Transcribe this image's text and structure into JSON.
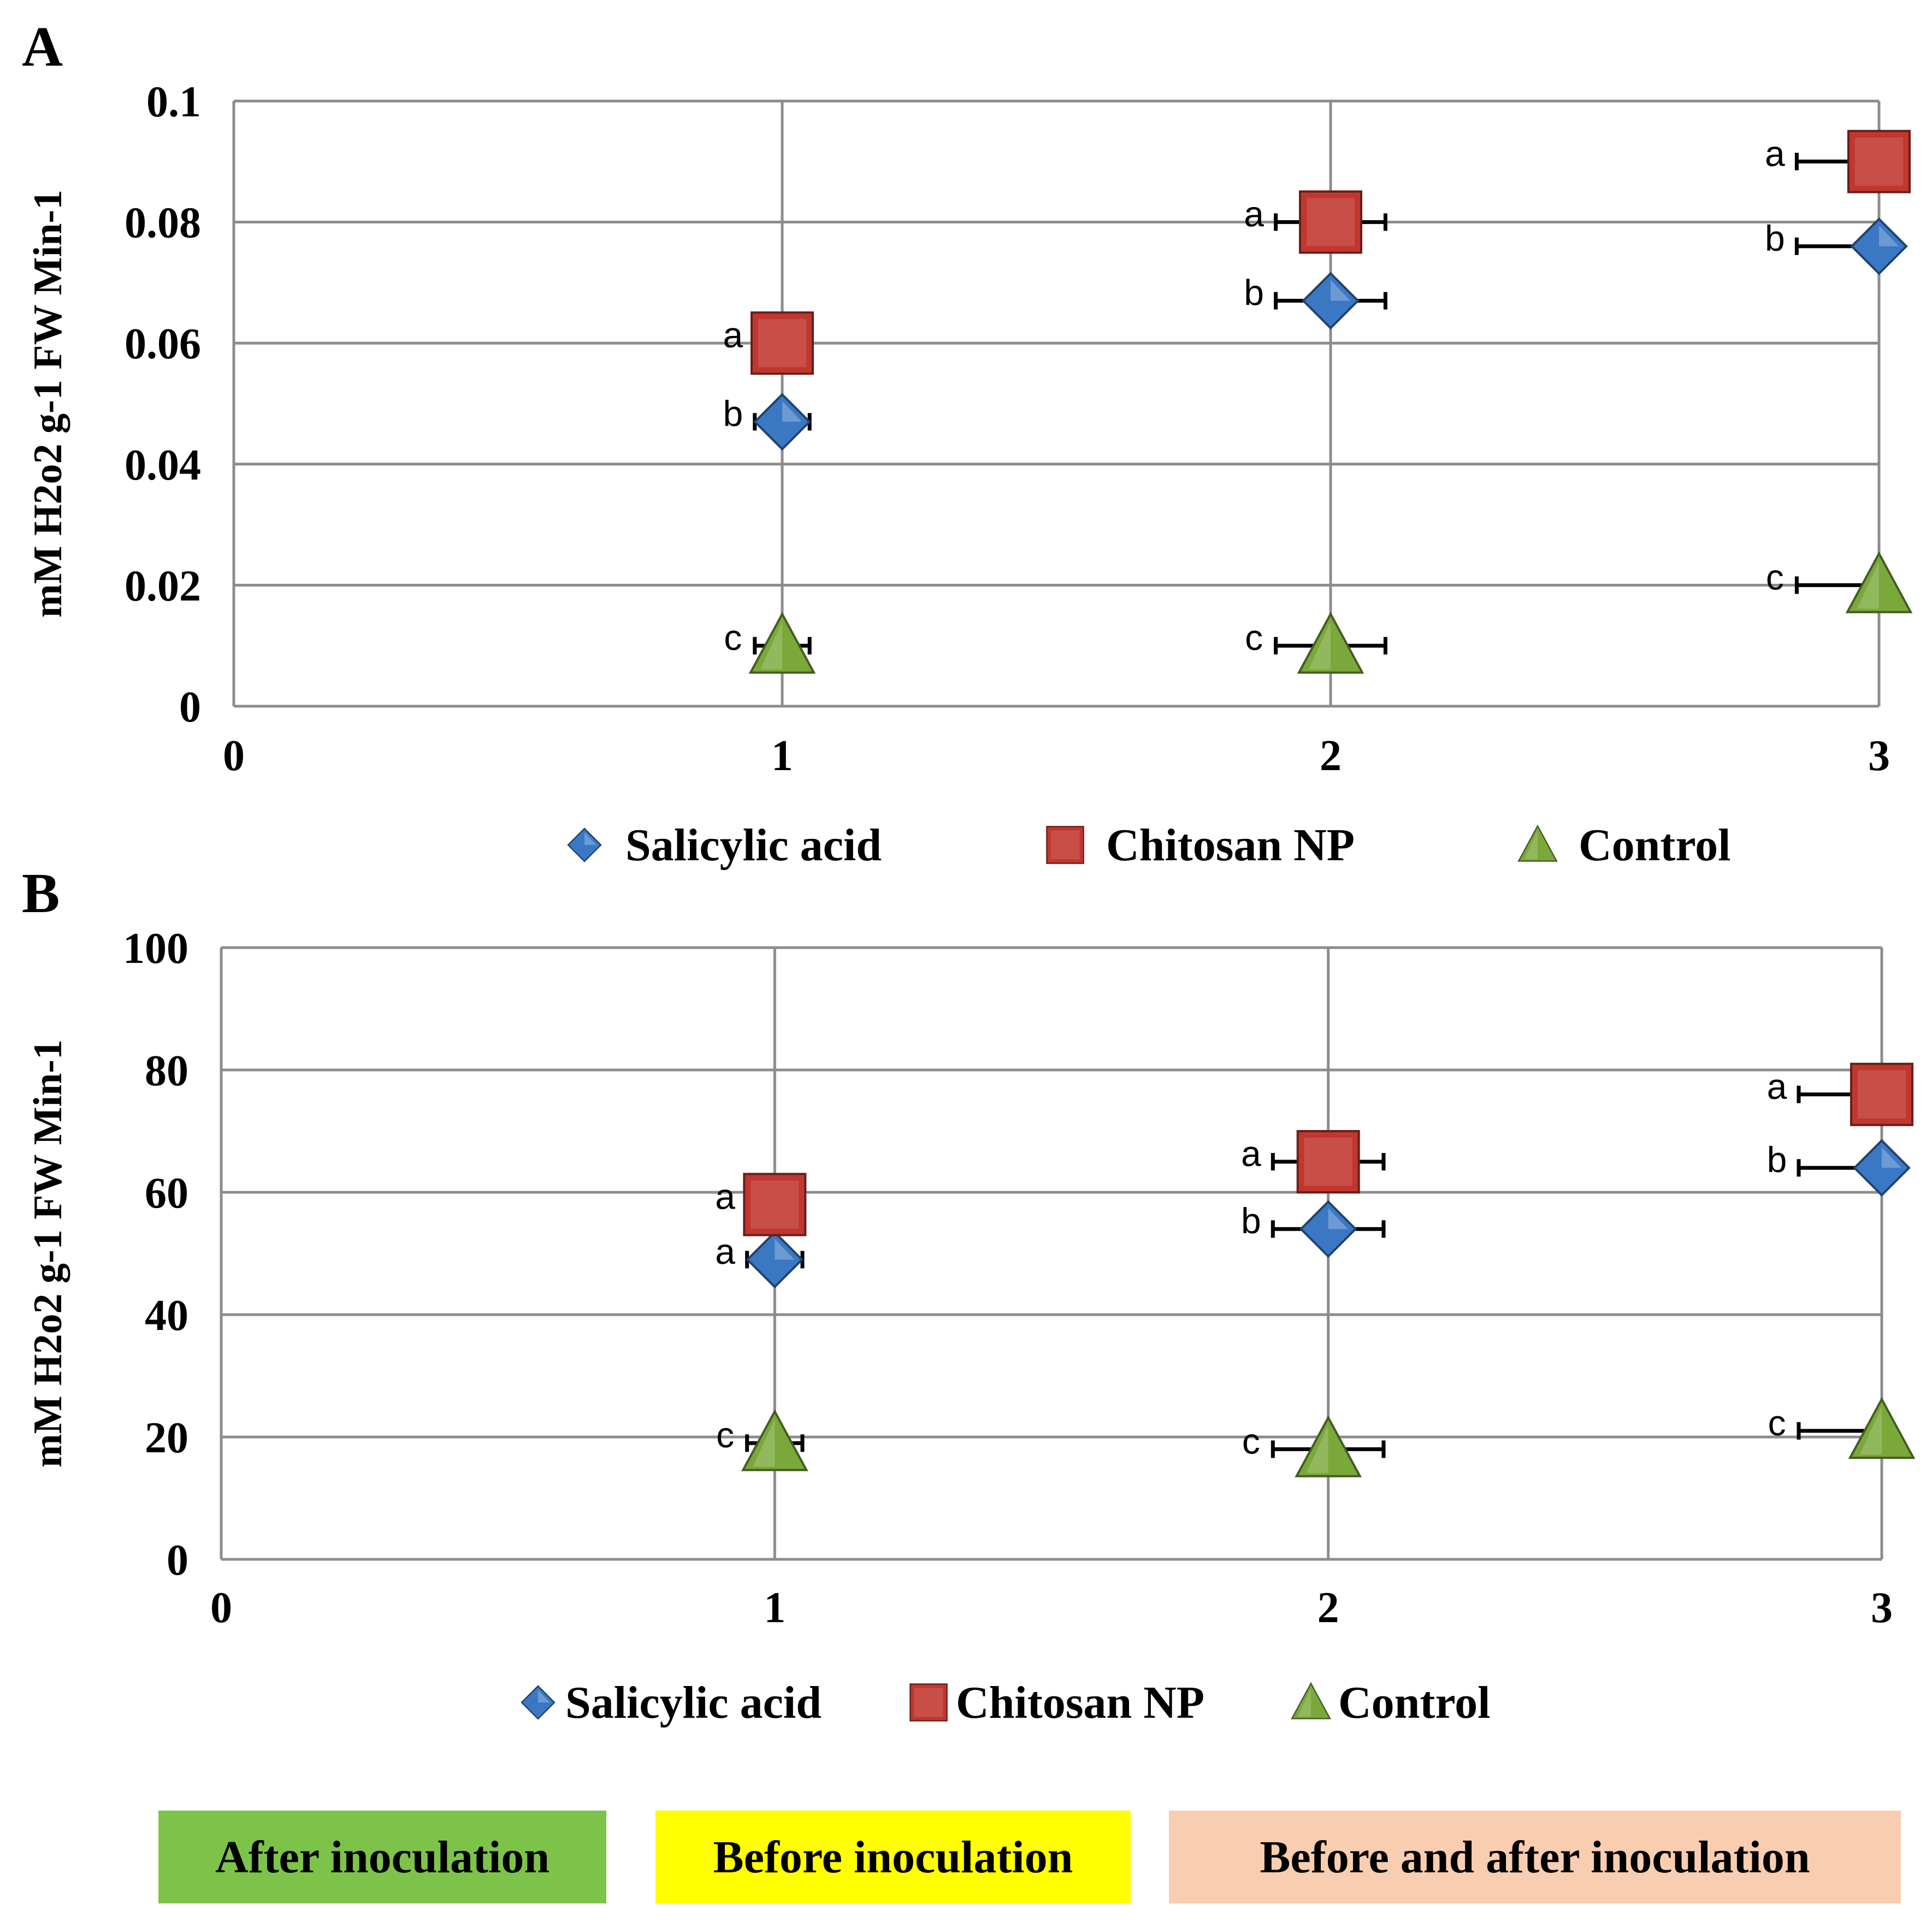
{
  "chart_data": [
    {
      "type": "scatter",
      "panel": "A",
      "ylabel": "mM H2o2 g-1 FW Min-1",
      "xlim": [
        0,
        3
      ],
      "ylim": [
        0,
        0.1
      ],
      "xticks": [
        "0",
        "1",
        "2",
        "3"
      ],
      "yticks": [
        "0",
        "0.02",
        "0.04",
        "0.06",
        "0.08",
        "0.1"
      ],
      "grid": true,
      "legend_position": "bottom",
      "series": [
        {
          "name": "Salicylic acid",
          "marker": "diamond",
          "color": "#3b78c4",
          "x": [
            1,
            2,
            3
          ],
          "y": [
            0.047,
            0.067,
            0.076
          ],
          "x_error": [
            0.05,
            0.1,
            0.15
          ],
          "letters": [
            "b",
            "b",
            "b"
          ]
        },
        {
          "name": "Chitosan NP",
          "marker": "square",
          "color": "#c0372f",
          "x": [
            1,
            2,
            3
          ],
          "y": [
            0.06,
            0.08,
            0.09
          ],
          "x_error": [
            0,
            0.1,
            0.15
          ],
          "letters": [
            "a",
            "a",
            "a"
          ]
        },
        {
          "name": "Control",
          "marker": "triangle",
          "color": "#7aa83a",
          "x": [
            1,
            2,
            3
          ],
          "y": [
            0.01,
            0.01,
            0.02
          ],
          "x_error": [
            0.05,
            0.1,
            0.15
          ],
          "letters": [
            "c",
            "c",
            "c"
          ]
        }
      ]
    },
    {
      "type": "scatter",
      "panel": "B",
      "ylabel": "mM H2o2 g-1 FW Min-1",
      "xlim": [
        0,
        3
      ],
      "ylim": [
        0,
        100
      ],
      "xticks": [
        "0",
        "1",
        "2",
        "3"
      ],
      "yticks": [
        "0",
        "20",
        "40",
        "60",
        "80",
        "100"
      ],
      "grid": true,
      "legend_position": "bottom",
      "series": [
        {
          "name": "Salicylic acid",
          "marker": "diamond",
          "color": "#3b78c4",
          "x": [
            1,
            2,
            3
          ],
          "y": [
            49,
            54,
            64
          ],
          "x_error": [
            0.05,
            0.1,
            0.15
          ],
          "letters": [
            "a",
            "b",
            "b"
          ]
        },
        {
          "name": "Chitosan NP",
          "marker": "square",
          "color": "#c0372f",
          "x": [
            1,
            2,
            3
          ],
          "y": [
            58,
            65,
            76
          ],
          "x_error": [
            0,
            0.1,
            0.15
          ],
          "letters": [
            "a",
            "a",
            "a"
          ]
        },
        {
          "name": "Control",
          "marker": "triangle",
          "color": "#7aa83a",
          "x": [
            1,
            2,
            3
          ],
          "y": [
            19,
            18,
            21
          ],
          "x_error": [
            0.05,
            0.1,
            0.15
          ],
          "letters": [
            "c",
            "c",
            "c"
          ]
        }
      ]
    }
  ],
  "phases": [
    {
      "label": "After inoculation",
      "color": "#7dc34a"
    },
    {
      "label": "Before inoculation",
      "color": "#ffff00"
    },
    {
      "label": "Before and after inoculation",
      "color": "#f8cdb0"
    }
  ]
}
